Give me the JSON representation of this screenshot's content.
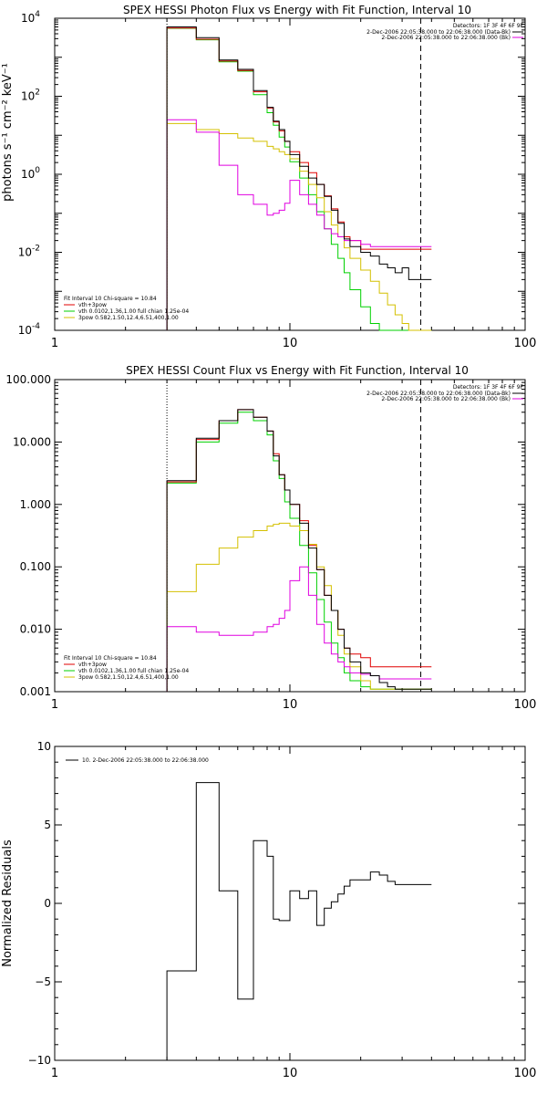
{
  "chart_data": [
    {
      "type": "line",
      "title": "SPEX HESSI Photon Flux vs Energy with Fit Function, Interval 10",
      "ylabel": "photons s⁻¹ cm⁻² keV⁻¹",
      "xscale": "log",
      "yscale": "log",
      "xlim": [
        1,
        100
      ],
      "ylim": [
        0.0001,
        10000
      ],
      "xticks": [
        "1",
        "10",
        "100"
      ],
      "yticks": [
        {
          "base": "10",
          "exp": "4",
          "value": 10000
        },
        {
          "base": "10",
          "exp": "2",
          "value": 100
        },
        {
          "base": "10",
          "exp": "0",
          "value": 1
        },
        {
          "base": "10",
          "exp": "-2",
          "value": 0.01
        },
        {
          "base": "10",
          "exp": "-4",
          "value": 0.0001
        }
      ],
      "vlines": [
        {
          "x": 3,
          "style": "dotted",
          "color": "#000000"
        },
        {
          "x": 36,
          "style": "dashed",
          "color": "#000000"
        }
      ],
      "legend_top": {
        "placement": "top-right",
        "header": "Detectors: 1F 3F 4F 6F 9F",
        "entries": [
          {
            "text": "2-Dec-2006 22:05:38.000 to 22:06:38.000 (Data-Bk)",
            "color": "#000000"
          },
          {
            "text": "2-Dec-2006 22:05:38.000 to 22:06:38.000 (Bk)",
            "color": "#e000e0"
          }
        ]
      },
      "legend_bottom": {
        "placement": "bottom-left",
        "header": "Fit Interval 10   Chi-square = 10.84",
        "entries": [
          {
            "text": "vth+3pow",
            "color": "#e00000"
          },
          {
            "text": "vth 0.0102,1.36,1.00  full chian 1.25e-04",
            "color": "#00d000"
          },
          {
            "text": "3pow 0.582,1.50,12.4,6.51,400,1.00",
            "color": "#d4c000"
          }
        ]
      },
      "edges": [
        3.0,
        3.5,
        4.0,
        4.5,
        5.0,
        5.5,
        6.0,
        6.5,
        7.0,
        7.5,
        8.0,
        8.5,
        9.0,
        9.5,
        10.0,
        11.0,
        12.0,
        13.0,
        14.0,
        15.0,
        16.0,
        17.0,
        18.0,
        20.0,
        22.0,
        24.0,
        26.0,
        28.0,
        30.0,
        32.0,
        34.0,
        36.0,
        40.0
      ],
      "series": [
        {
          "color": "#00d000",
          "values": [
            5500,
            5500,
            2800,
            2800,
            760,
            760,
            440,
            440,
            110,
            110,
            38,
            18,
            9,
            5,
            2.1,
            0.8,
            0.3,
            0.11,
            0.04,
            0.016,
            0.007,
            0.003,
            0.0011,
            0.0004,
            0.00015,
            8e-05,
            8e-05,
            8e-05,
            8e-05,
            8e-05,
            8e-05,
            8e-05
          ]
        },
        {
          "color": "#e00000",
          "values": [
            5600,
            5600,
            2900,
            2900,
            800,
            800,
            460,
            460,
            130,
            130,
            50,
            22,
            13,
            7,
            3.8,
            2,
            1.1,
            0.55,
            0.28,
            0.13,
            0.06,
            0.025,
            0.02,
            0.012,
            0.012,
            0.012,
            0.012,
            0.012,
            0.012,
            0.012,
            0.012,
            0.012
          ]
        },
        {
          "color": "#d4c000",
          "values": [
            20,
            20,
            14,
            14,
            11,
            11,
            8.5,
            8.5,
            7,
            7,
            5.2,
            4.5,
            3.8,
            3.2,
            2.5,
            1.2,
            0.55,
            0.25,
            0.11,
            0.05,
            0.025,
            0.013,
            0.007,
            0.0035,
            0.0018,
            0.0009,
            0.00045,
            0.00025,
            0.00015,
            0.0001,
            0.0001,
            0.0001
          ]
        },
        {
          "color": "#e000e0",
          "values": [
            25,
            25,
            12,
            12,
            1.7,
            1.7,
            0.3,
            0.3,
            0.17,
            0.17,
            0.09,
            0.1,
            0.12,
            0.18,
            0.7,
            0.3,
            0.17,
            0.09,
            0.04,
            0.03,
            0.025,
            0.02,
            0.02,
            0.016,
            0.014,
            0.014,
            0.014,
            0.014,
            0.014,
            0.014,
            0.014,
            0.014
          ]
        },
        {
          "color": "#000000",
          "values": [
            6000,
            6000,
            3200,
            3200,
            850,
            850,
            490,
            490,
            140,
            140,
            52,
            23,
            14,
            7,
            3.2,
            1.6,
            0.8,
            0.55,
            0.27,
            0.12,
            0.055,
            0.022,
            0.014,
            0.01,
            0.008,
            0.005,
            0.004,
            0.003,
            0.004,
            0.002,
            0.002,
            0.002
          ]
        }
      ]
    },
    {
      "type": "line",
      "title": "SPEX HESSI Count Flux vs Energy with Fit Function, Interval 10",
      "ylabel": "",
      "xscale": "log",
      "yscale": "log",
      "xlim": [
        1,
        100
      ],
      "ylim": [
        0.001,
        100
      ],
      "xticks": [
        "1",
        "10",
        "100"
      ],
      "yticks": [
        {
          "label": "100.000",
          "value": 100
        },
        {
          "label": "10.000",
          "value": 10
        },
        {
          "label": "1.000",
          "value": 1
        },
        {
          "label": "0.100",
          "value": 0.1
        },
        {
          "label": "0.010",
          "value": 0.01
        },
        {
          "label": "0.001",
          "value": 0.001
        }
      ],
      "vlines": [
        {
          "x": 3,
          "style": "dotted",
          "color": "#000000"
        },
        {
          "x": 36,
          "style": "dashed",
          "color": "#000000"
        }
      ],
      "legend_top": {
        "placement": "top-right",
        "header": "Detectors: 1F 3F 4F 6F 9F",
        "entries": [
          {
            "text": "2-Dec-2006 22:05:38.000 to 22:06:38.000 (Data-Bk)",
            "color": "#000000"
          },
          {
            "text": "2-Dec-2006 22:05:38.000 to 22:06:38.000 (Bk)",
            "color": "#e000e0"
          }
        ]
      },
      "legend_bottom": {
        "placement": "bottom-left",
        "header": "Fit Interval 10   Chi-square = 10.84",
        "entries": [
          {
            "text": "vth+3pow",
            "color": "#e00000"
          },
          {
            "text": "vth 0.0102,1.36,1.00  full chian 1.25e-04",
            "color": "#00d000"
          },
          {
            "text": "3pow 0.582,1.50,12.4,6.51,400,1.00",
            "color": "#d4c000"
          }
        ]
      },
      "edges": [
        3.0,
        3.5,
        4.0,
        4.5,
        5.0,
        5.5,
        6.0,
        6.5,
        7.0,
        7.5,
        8.0,
        8.5,
        9.0,
        9.5,
        10.0,
        11.0,
        12.0,
        13.0,
        14.0,
        15.0,
        16.0,
        17.0,
        18.0,
        20.0,
        22.0,
        24.0,
        26.0,
        28.0,
        30.0,
        32.0,
        34.0,
        36.0,
        40.0
      ],
      "series": [
        {
          "color": "#00d000",
          "values": [
            2.2,
            2.2,
            10,
            10,
            20,
            20,
            30,
            30,
            22,
            22,
            13,
            5,
            2.6,
            1.1,
            0.6,
            0.22,
            0.08,
            0.03,
            0.013,
            0.006,
            0.0035,
            0.002,
            0.0015,
            0.0012,
            0.0011,
            0.0011,
            0.0011,
            0.0011,
            0.0011,
            0.0011,
            0.0011,
            0.0011
          ]
        },
        {
          "color": "#e00000",
          "values": [
            2.3,
            2.3,
            11,
            11,
            22,
            22,
            33,
            33,
            25,
            25,
            15,
            6.5,
            3,
            1.7,
            1,
            0.55,
            0.22,
            0.09,
            0.035,
            0.02,
            0.01,
            0.005,
            0.004,
            0.0035,
            0.0025,
            0.0025,
            0.0025,
            0.0025,
            0.0025,
            0.0025,
            0.0025,
            0.0025
          ]
        },
        {
          "color": "#d4c000",
          "values": [
            0.04,
            0.04,
            0.11,
            0.11,
            0.2,
            0.2,
            0.3,
            0.3,
            0.38,
            0.38,
            0.45,
            0.48,
            0.5,
            0.5,
            0.45,
            0.38,
            0.23,
            0.1,
            0.05,
            0.02,
            0.008,
            0.004,
            0.0025,
            0.0015,
            0.0011,
            0.0011,
            0.0011,
            0.0011,
            0.0011,
            0.0011,
            0.0011,
            0.0011
          ]
        },
        {
          "color": "#e000e0",
          "values": [
            0.011,
            0.011,
            0.009,
            0.009,
            0.008,
            0.008,
            0.008,
            0.008,
            0.009,
            0.009,
            0.011,
            0.012,
            0.015,
            0.02,
            0.06,
            0.1,
            0.035,
            0.012,
            0.006,
            0.004,
            0.003,
            0.0025,
            0.002,
            0.0019,
            0.0018,
            0.0016,
            0.0016,
            0.0016,
            0.0016,
            0.0016,
            0.0016,
            0.0016
          ]
        },
        {
          "color": "#000000",
          "values": [
            2.4,
            2.4,
            11.5,
            11.5,
            22,
            22,
            33,
            33,
            25,
            25,
            15,
            6,
            3,
            1.7,
            1,
            0.5,
            0.2,
            0.09,
            0.035,
            0.02,
            0.01,
            0.005,
            0.003,
            0.002,
            0.0018,
            0.0014,
            0.0012,
            0.0011,
            0.0011,
            0.0011,
            0.0011,
            0.0011
          ]
        }
      ]
    },
    {
      "type": "line",
      "title": "",
      "ylabel": "Normalized Residuals",
      "xscale": "log",
      "yscale": "linear",
      "xlim": [
        1,
        100
      ],
      "ylim": [
        -10,
        10
      ],
      "xticks": [
        "1",
        "10",
        "100"
      ],
      "yticks": [
        {
          "label": "10",
          "value": 10
        },
        {
          "label": "5",
          "value": 5
        },
        {
          "label": "0",
          "value": 0
        },
        {
          "label": "−5",
          "value": -5
        },
        {
          "label": "−10",
          "value": -10
        }
      ],
      "legend_top": {
        "placement": "top-left",
        "header": "",
        "entries": [
          {
            "text": "10.  2-Dec-2006 22:05:38.000 to 22:06:38.000",
            "color": "#000000"
          }
        ]
      },
      "edges": [
        3.0,
        3.5,
        4.0,
        4.5,
        5.0,
        5.5,
        6.0,
        6.5,
        7.0,
        7.5,
        8.0,
        8.5,
        9.0,
        9.5,
        10.0,
        11.0,
        12.0,
        13.0,
        14.0,
        15.0,
        16.0,
        17.0,
        18.0,
        20.0,
        22.0,
        24.0,
        26.0,
        28.0,
        30.0,
        32.0,
        34.0,
        36.0,
        40.0
      ],
      "series": [
        {
          "color": "#000000",
          "values": [
            -4.3,
            -4.3,
            7.7,
            7.7,
            0.8,
            0.8,
            -6.1,
            -6.1,
            4.0,
            4.0,
            3.0,
            -1.0,
            -1.1,
            -1.1,
            0.8,
            0.3,
            0.8,
            -1.4,
            -0.3,
            0.1,
            0.6,
            1.1,
            1.5,
            1.5,
            2.0,
            1.8,
            1.4,
            1.2,
            1.2,
            1.2,
            1.2,
            1.2
          ]
        }
      ]
    }
  ]
}
